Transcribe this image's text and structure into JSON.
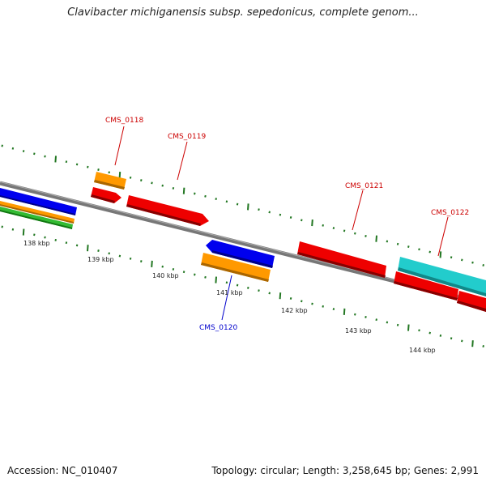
{
  "title": "Clavibacter michiganensis subsp. sepedonicus, complete genom...",
  "footer": {
    "accession": "Accession: NC_010407",
    "summary": "Topology: circular; Length: 3,258,645 bp; Genes: 2,991"
  },
  "kbp_labels": [
    "138 kbp",
    "139 kbp",
    "140 kbp",
    "141 kbp",
    "142 kbp",
    "143 kbp",
    "144 kbp"
  ],
  "gene_labels": [
    {
      "name": "CMS_0118",
      "color": "#cc0000"
    },
    {
      "name": "CMS_0119",
      "color": "#cc0000"
    },
    {
      "name": "CMS_0120",
      "color": "#0000cc"
    },
    {
      "name": "CMS_0121",
      "color": "#cc0000"
    },
    {
      "name": "CMS_0122",
      "color": "#cc0000"
    }
  ],
  "colors": {
    "backbone": "#777777",
    "cds_forward": "#ee0000",
    "cds_reverse_blue": "#0000ee",
    "orange": "#ff9900",
    "cyan": "#22cccc",
    "green": "#33bb33",
    "ticks": "#227722"
  }
}
